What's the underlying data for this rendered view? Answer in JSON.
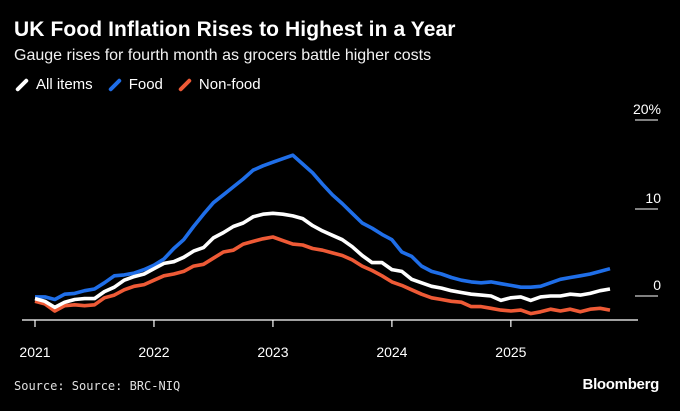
{
  "header": {
    "title": "UK Food Inflation Rises to Highest in a Year",
    "subtitle": "Gauge rises for fourth month as grocers battle higher costs"
  },
  "footer": {
    "source": "Source: Source: BRC-NIQ",
    "brand": "Bloomberg"
  },
  "colors": {
    "background": "#000000",
    "all_items": "#ffffff",
    "food": "#1f6ee8",
    "non_food": "#ee5a36",
    "axis": "#ffffff"
  },
  "chart_data": {
    "type": "line",
    "x_start": "2021-01",
    "frequency": "monthly",
    "xticks": [
      "2021",
      "2022",
      "2023",
      "2024",
      "2025"
    ],
    "yticks": [
      "20%",
      "10",
      "0"
    ],
    "ylim": [
      -3,
      20
    ],
    "grid": false,
    "legend_position": "top-left",
    "series": [
      {
        "name": "All items",
        "color": "#ffffff",
        "values": [
          -0.3,
          -0.6,
          -1.3,
          -0.7,
          -0.4,
          -0.3,
          -0.3,
          0.5,
          1.0,
          1.8,
          2.2,
          2.5,
          3.1,
          3.7,
          3.9,
          4.4,
          5.1,
          5.5,
          6.6,
          7.2,
          7.9,
          8.3,
          9.0,
          9.3,
          9.4,
          9.3,
          9.1,
          8.8,
          8.0,
          7.4,
          6.9,
          6.4,
          5.6,
          4.6,
          3.8,
          3.8,
          3.0,
          2.8,
          1.9,
          1.5,
          1.1,
          0.9,
          0.6,
          0.4,
          0.2,
          0.1,
          0.0,
          -0.5,
          -0.2,
          -0.1,
          -0.5,
          -0.1,
          0.0,
          0.0,
          0.2,
          0.1,
          0.3,
          0.6,
          0.8
        ]
      },
      {
        "name": "Food",
        "color": "#1f6ee8",
        "values": [
          -0.1,
          -0.1,
          -0.4,
          0.2,
          0.3,
          0.6,
          0.8,
          1.5,
          2.3,
          2.4,
          2.6,
          3.0,
          3.5,
          4.2,
          5.4,
          6.4,
          7.9,
          9.3,
          10.6,
          11.5,
          12.4,
          13.3,
          14.3,
          14.8,
          15.2,
          15.6,
          16.0,
          15.0,
          14.0,
          12.7,
          11.5,
          10.5,
          9.4,
          8.3,
          7.7,
          7.0,
          6.4,
          5.0,
          4.5,
          3.4,
          2.8,
          2.5,
          2.1,
          1.8,
          1.6,
          1.5,
          1.6,
          1.4,
          1.2,
          1.0,
          1.0,
          1.1,
          1.5,
          1.9,
          2.1,
          2.3,
          2.5,
          2.8,
          3.1
        ]
      },
      {
        "name": "Non-food",
        "color": "#ee5a36",
        "values": [
          -0.6,
          -0.9,
          -1.7,
          -1.1,
          -1.0,
          -1.1,
          -1.0,
          -0.2,
          0.1,
          0.7,
          1.1,
          1.3,
          1.8,
          2.3,
          2.5,
          2.8,
          3.4,
          3.6,
          4.3,
          5.0,
          5.2,
          5.9,
          6.2,
          6.5,
          6.7,
          6.3,
          5.9,
          5.8,
          5.4,
          5.2,
          4.9,
          4.6,
          4.1,
          3.4,
          2.9,
          2.3,
          1.6,
          1.2,
          0.7,
          0.2,
          -0.2,
          -0.4,
          -0.6,
          -0.7,
          -1.2,
          -1.2,
          -1.4,
          -1.6,
          -1.7,
          -1.6,
          -2.0,
          -1.8,
          -1.5,
          -1.7,
          -1.5,
          -1.8,
          -1.5,
          -1.4,
          -1.6
        ]
      }
    ]
  }
}
